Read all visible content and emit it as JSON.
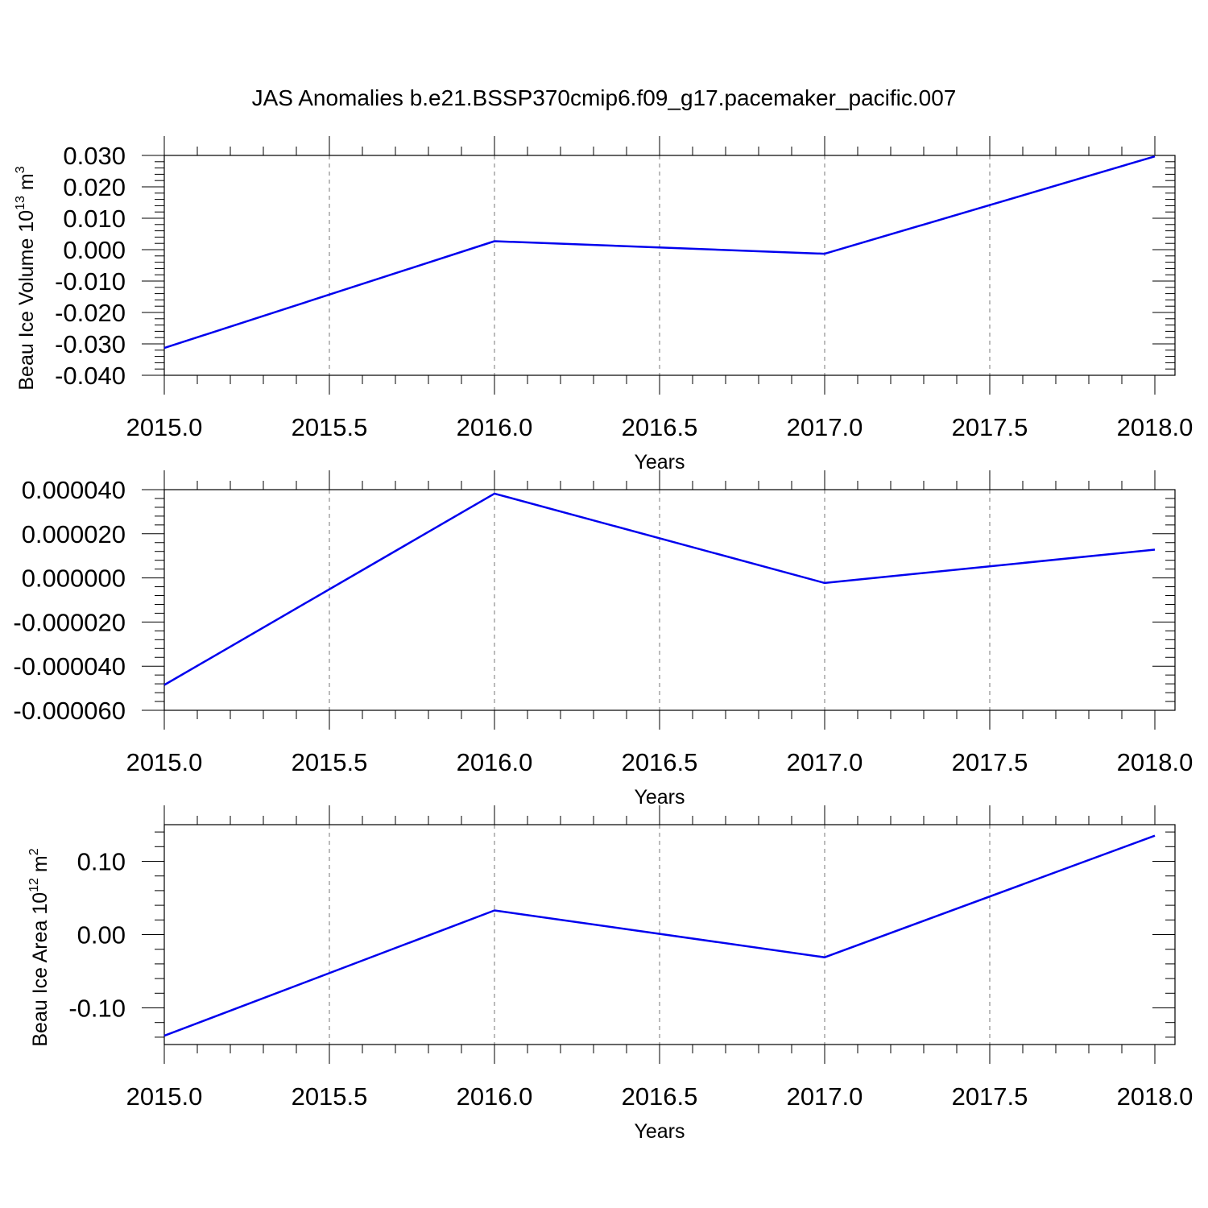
{
  "title": "JAS Anomalies b.e21.BSSP370cmip6.f09_g17.pacemaker_pacific.007",
  "colors": {
    "line": "#0000ee"
  },
  "chart_data": [
    {
      "type": "line",
      "title": "JAS Anomalies b.e21.BSSP370cmip6.f09_g17.pacemaker_pacific.007",
      "xlabel": "Years",
      "ylabel": {
        "main": "Beau Ice Volume 10",
        "sup1": "13",
        "mid": " m",
        "sup2": "3"
      },
      "xlim": [
        2015.0,
        2018.0
      ],
      "ylim": [
        -0.04,
        0.03
      ],
      "xticks": [
        "2015.0",
        "2015.5",
        "2016.0",
        "2016.5",
        "2017.0",
        "2017.5",
        "2018.0"
      ],
      "yticks": [
        "-0.040",
        "-0.030",
        "-0.020",
        "-0.010",
        "0.000",
        "0.010",
        "0.020",
        "0.030"
      ],
      "grid": "vertical dashed",
      "x": [
        2015,
        2016,
        2017,
        2018
      ],
      "values": [
        -0.0313,
        0.0027,
        -0.0013,
        0.0297
      ]
    },
    {
      "type": "line",
      "xlabel": "Years",
      "ylabel": null,
      "xlim": [
        2015.0,
        2018.0
      ],
      "ylim": [
        -6e-05,
        4e-05
      ],
      "xticks": [
        "2015.0",
        "2015.5",
        "2016.0",
        "2016.5",
        "2017.0",
        "2017.5",
        "2018.0"
      ],
      "yticks": [
        "-0.000060",
        "-0.000040",
        "-0.000020",
        "0.000000",
        "0.000020",
        "0.000040"
      ],
      "grid": "vertical dashed",
      "x": [
        2015,
        2016,
        2017,
        2018
      ],
      "values": [
        -4.85e-05,
        3.82e-05,
        -2.3e-06,
        1.28e-05
      ]
    },
    {
      "type": "line",
      "xlabel": "Years",
      "ylabel": {
        "main": "Beau Ice Area 10",
        "sup1": "12",
        "mid": " m",
        "sup2": "2"
      },
      "xlim": [
        2015.0,
        2018.0
      ],
      "ylim": [
        -0.15,
        0.15
      ],
      "xticks": [
        "2015.0",
        "2015.5",
        "2016.0",
        "2016.5",
        "2017.0",
        "2017.5",
        "2018.0"
      ],
      "yticks": [
        "-0.10",
        "0.00",
        "0.10"
      ],
      "grid": "vertical dashed",
      "x": [
        2015,
        2016,
        2017,
        2018
      ],
      "values": [
        -0.138,
        0.033,
        -0.031,
        0.135
      ]
    }
  ]
}
